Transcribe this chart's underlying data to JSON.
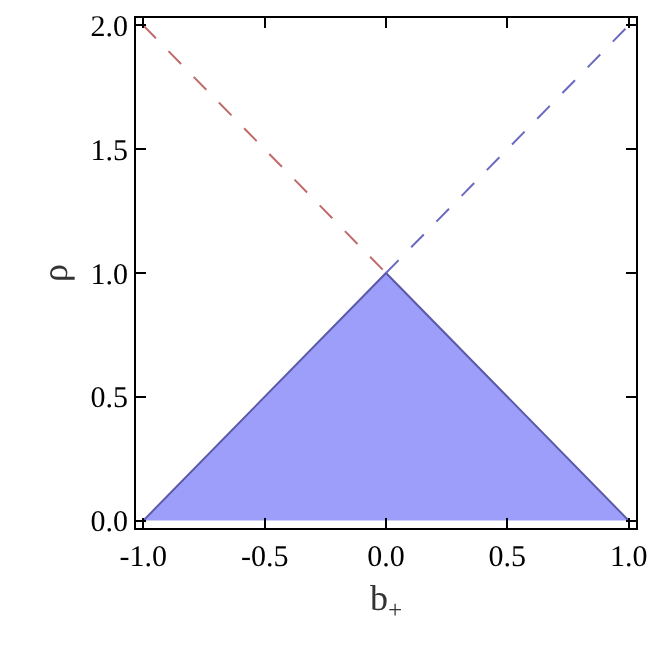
{
  "chart_data": {
    "type": "line",
    "xlabel": "b$_{+}$",
    "ylabel": "ρ",
    "xlim": [
      -1.03,
      1.03
    ],
    "ylim": [
      -0.03,
      2.03
    ],
    "xticks": [
      {
        "value": -1,
        "label": "-1.0"
      },
      {
        "value": -0.5,
        "label": "-0.5"
      },
      {
        "value": 0,
        "label": "0.0"
      },
      {
        "value": 0.5,
        "label": "0.5"
      },
      {
        "value": 1,
        "label": "1.0"
      }
    ],
    "yticks": [
      {
        "value": 0,
        "label": "0.0"
      },
      {
        "value": 0.5,
        "label": "0.5"
      },
      {
        "value": 1,
        "label": "1.0"
      },
      {
        "value": 1.5,
        "label": "1.5"
      },
      {
        "value": 2,
        "label": "2.0"
      }
    ],
    "marker": "none",
    "series": [
      {
        "type": "area",
        "color": "#9d9dfa",
        "x": [
          -1,
          0,
          1
        ],
        "values": [
          0,
          1,
          0
        ],
        "line_style": "solid"
      },
      {
        "color": "#c06a6a",
        "x": [
          -1,
          0
        ],
        "values": [
          2,
          1
        ],
        "line_style": "dashed"
      },
      {
        "color": "#6a6ac0",
        "x": [
          0,
          1
        ],
        "values": [
          1,
          2
        ],
        "line_style": "dashed"
      }
    ]
  }
}
